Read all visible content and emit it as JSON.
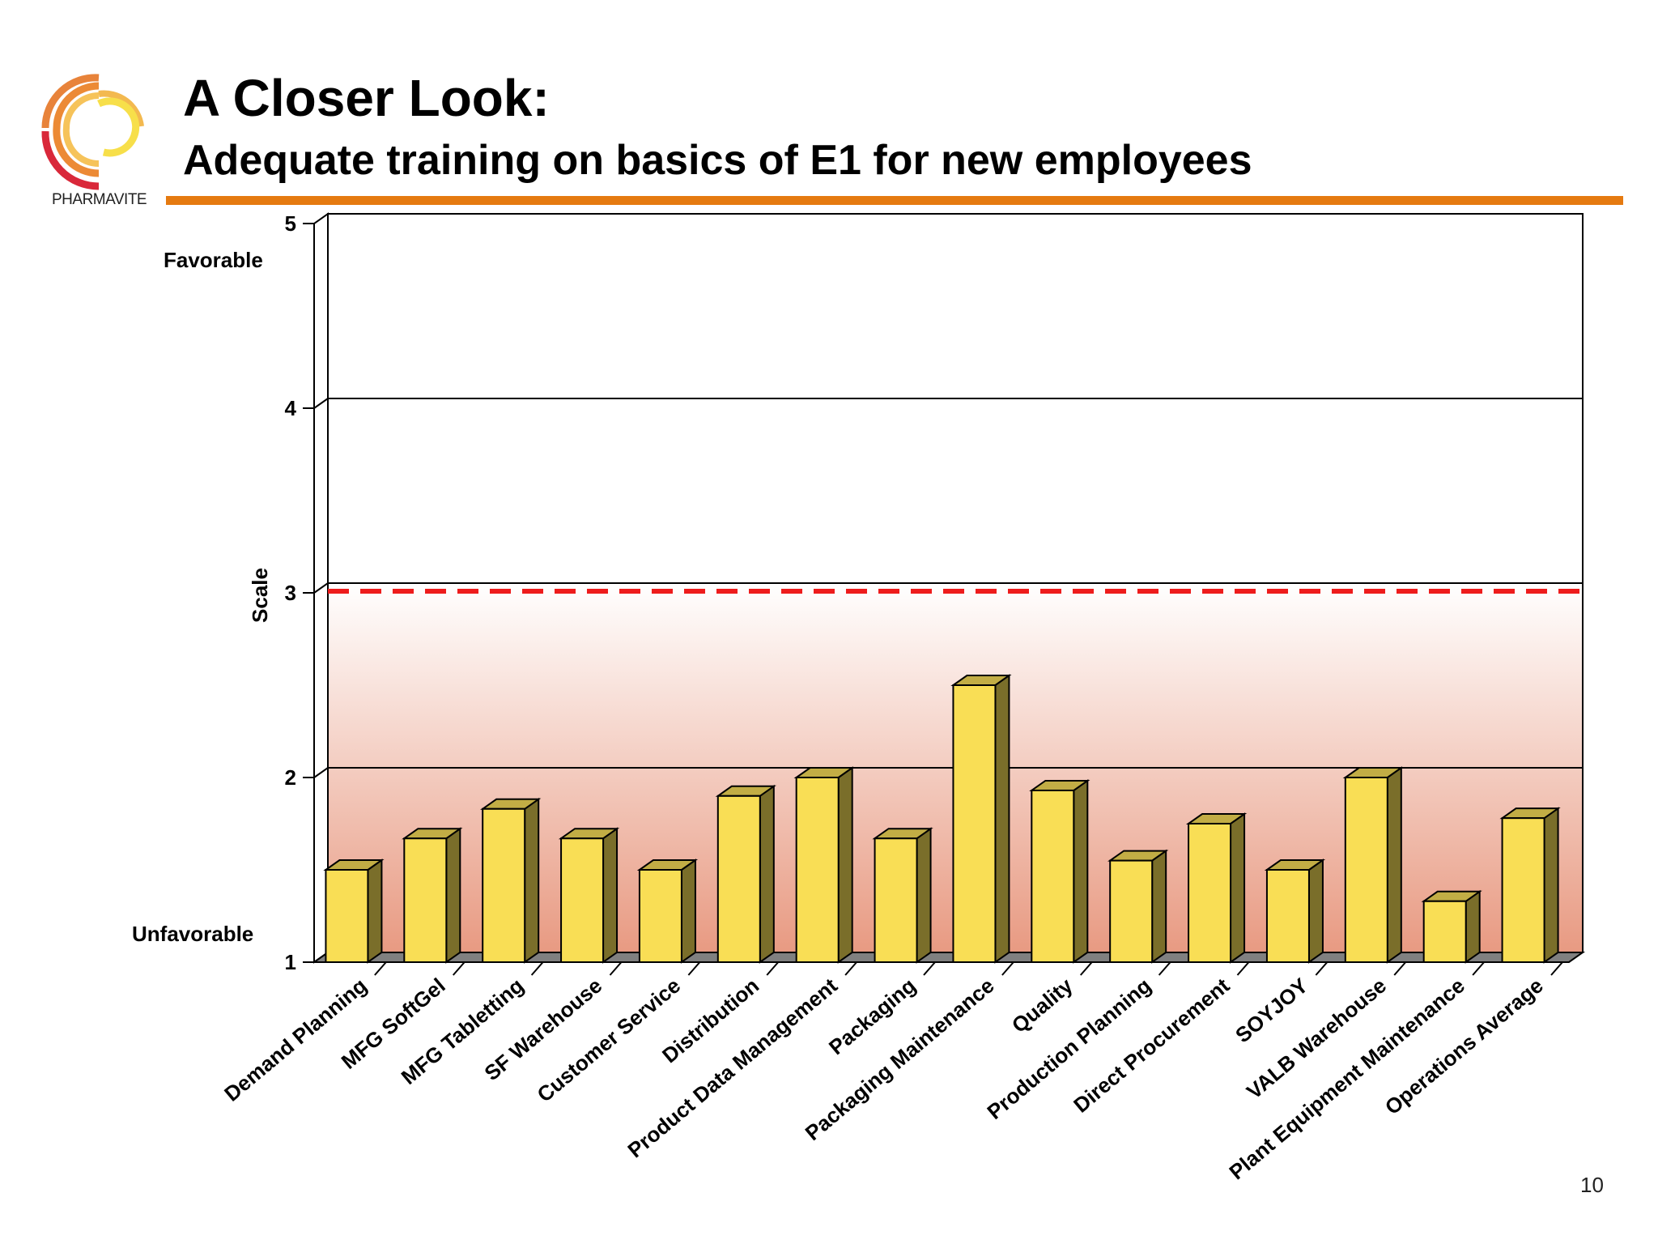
{
  "header": {
    "title": "A Closer Look:",
    "subtitle": "Adequate training on basics of E1 for new employees",
    "brand": "PHARMAVITE",
    "accent_color": "#e57a10"
  },
  "page_number": "10",
  "chart_data": {
    "type": "bar",
    "style": "3d",
    "title": "",
    "xlabel": "",
    "ylabel": "Scale",
    "ylim": [
      1,
      5
    ],
    "yticks": [
      "1",
      "2",
      "3",
      "4",
      "5"
    ],
    "grid": true,
    "y_annotations": {
      "top": "Favorable",
      "bottom": "Unfavorable"
    },
    "reference_line": {
      "value": 3,
      "color": "#ee1c1c",
      "style": "dashed"
    },
    "bar_color": "#f9de55",
    "categories": [
      "Demand Planning",
      "MFG SoftGel",
      "MFG Tabletting",
      "SF Warehouse",
      "Customer Service",
      "Distribution",
      "Product Data Management",
      "Packaging",
      "Packaging Maintenance",
      "Quality",
      "Production Planning",
      "Direct Procurement",
      "SOYJOY",
      "VALB Warehouse",
      "Plant Equipment Maintenance",
      "Operations Average"
    ],
    "values": [
      1.5,
      1.67,
      1.83,
      1.67,
      1.5,
      1.9,
      2.0,
      1.67,
      2.5,
      1.93,
      1.55,
      1.75,
      1.5,
      2.0,
      1.33,
      1.78
    ]
  }
}
